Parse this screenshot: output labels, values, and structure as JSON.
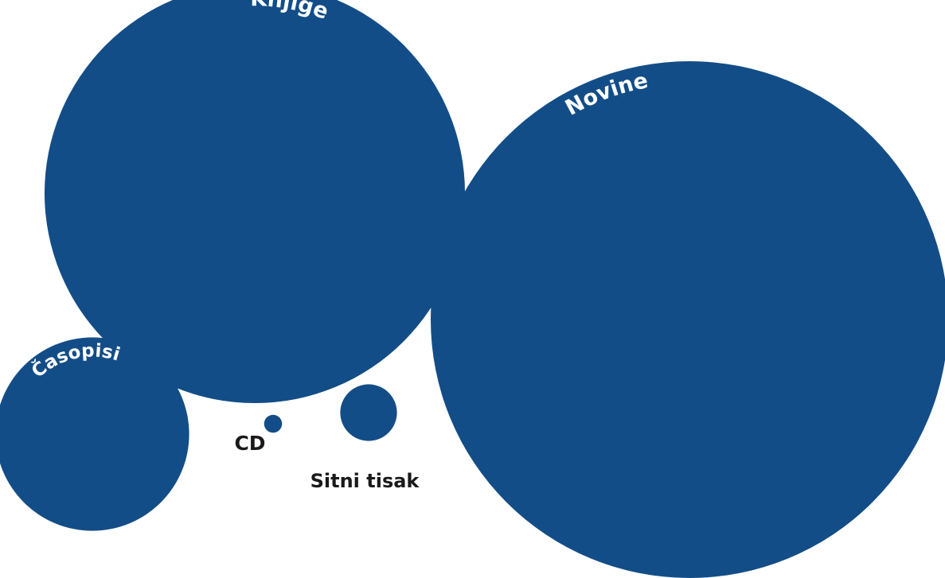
{
  "chart_data": {
    "type": "bubble",
    "title": "",
    "bubble_color": "#134d87",
    "label_color_inside": "#ffffff",
    "label_color_outside": "#1a1a1a",
    "series": [
      {
        "name": "Novine",
        "value": 100
      },
      {
        "name": "Knjige",
        "value": 66
      },
      {
        "name": "Časopisi",
        "value": 14
      },
      {
        "name": "Sitni tisak",
        "value": 1.2
      },
      {
        "name": "CD",
        "value": 0.12
      }
    ]
  }
}
